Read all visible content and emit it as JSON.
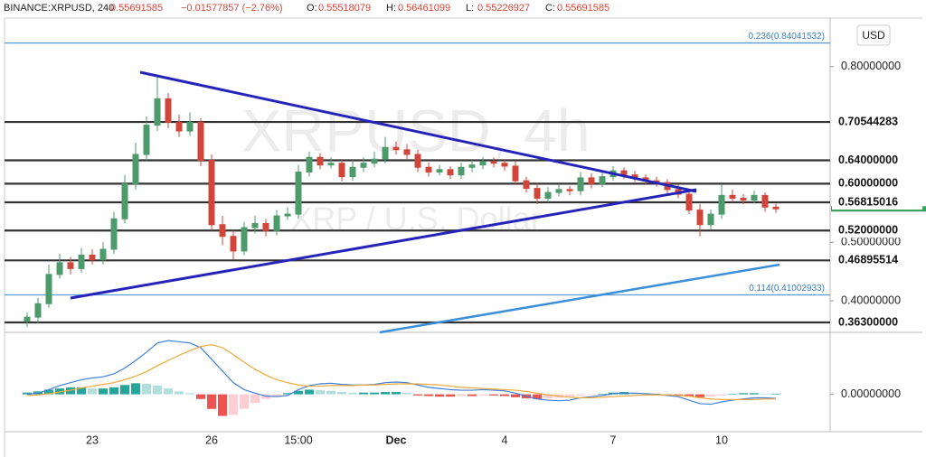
{
  "chart_data": {
    "type": "candlestick",
    "title": "BINANCE:XRPUSD, 240",
    "last": "0.55691585",
    "change": "−0.01577857 (−2.76%)",
    "ohlc_legend": [
      {
        "key": "O:",
        "value": "0.55518079"
      },
      {
        "key": "H:",
        "value": "0.56461099"
      },
      {
        "key": "L:",
        "value": "0.55226927"
      },
      {
        "key": "C:",
        "value": "0.55691585"
      }
    ],
    "watermark": "XRPUSD, 4h",
    "watermark_subtitle": "XRP / U.S. Dollar",
    "currency": "USD",
    "up_color": "#4d9a6b",
    "down_color": "#d0463a",
    "categories": [
      null,
      null,
      null,
      null,
      null,
      null,
      "23",
      null,
      null,
      null,
      null,
      null,
      null,
      null,
      null,
      null,
      null,
      "26",
      null,
      null,
      null,
      null,
      null,
      null,
      null,
      "15:00",
      null,
      null,
      null,
      null,
      null,
      null,
      null,
      null,
      "Dec",
      null,
      null,
      null,
      null,
      null,
      null,
      null,
      null,
      null,
      "4",
      null,
      null,
      null,
      null,
      null,
      null,
      null,
      null,
      null,
      "7",
      null,
      null,
      null,
      null,
      null,
      null,
      null,
      null,
      null,
      "10",
      null,
      null,
      null,
      null,
      null
    ],
    "open": [
      0.365,
      0.372,
      0.395,
      0.445,
      0.465,
      0.455,
      0.478,
      0.47,
      0.488,
      0.54,
      0.6,
      0.65,
      0.7,
      0.745,
      0.705,
      0.69,
      0.705,
      0.64,
      0.53,
      0.51,
      0.485,
      0.525,
      0.532,
      0.52,
      0.545,
      0.548,
      0.62,
      0.645,
      0.632,
      0.635,
      0.612,
      0.628,
      0.635,
      0.642,
      0.662,
      0.658,
      0.65,
      0.628,
      0.62,
      0.624,
      0.615,
      0.628,
      0.632,
      0.638,
      0.635,
      0.63,
      0.605,
      0.592,
      0.575,
      0.585,
      0.59,
      0.588,
      0.61,
      0.6,
      0.612,
      0.622,
      0.615,
      0.61,
      0.605,
      0.602,
      0.59,
      0.582,
      0.555,
      0.53,
      0.548,
      0.58,
      0.575,
      0.572,
      0.58,
      0.56
    ],
    "high": [
      0.38,
      0.405,
      0.462,
      0.48,
      0.475,
      0.49,
      0.488,
      0.5,
      0.552,
      0.615,
      0.67,
      0.715,
      0.785,
      0.755,
      0.718,
      0.722,
      0.712,
      0.65,
      0.545,
      0.52,
      0.535,
      0.545,
      0.54,
      0.555,
      0.56,
      0.632,
      0.655,
      0.652,
      0.645,
      0.642,
      0.64,
      0.645,
      0.655,
      0.68,
      0.672,
      0.668,
      0.658,
      0.636,
      0.632,
      0.63,
      0.636,
      0.64,
      0.646,
      0.645,
      0.642,
      0.638,
      0.612,
      0.6,
      0.594,
      0.598,
      0.596,
      0.62,
      0.618,
      0.622,
      0.63,
      0.628,
      0.622,
      0.616,
      0.612,
      0.608,
      0.598,
      0.588,
      0.565,
      0.556,
      0.598,
      0.59,
      0.582,
      0.588,
      0.585,
      0.566
    ],
    "low": [
      0.355,
      0.362,
      0.388,
      0.438,
      0.445,
      0.448,
      0.462,
      0.462,
      0.48,
      0.532,
      0.59,
      0.64,
      0.69,
      0.695,
      0.68,
      0.682,
      0.63,
      0.52,
      0.495,
      0.47,
      0.478,
      0.515,
      0.51,
      0.512,
      0.538,
      0.54,
      0.612,
      0.625,
      0.626,
      0.604,
      0.605,
      0.62,
      0.628,
      0.635,
      0.65,
      0.642,
      0.62,
      0.612,
      0.614,
      0.608,
      0.608,
      0.62,
      0.625,
      0.628,
      0.622,
      0.598,
      0.585,
      0.565,
      0.568,
      0.578,
      0.58,
      0.58,
      0.592,
      0.594,
      0.605,
      0.608,
      0.603,
      0.598,
      0.595,
      0.583,
      0.575,
      0.548,
      0.51,
      0.522,
      0.54,
      0.568,
      0.565,
      0.566,
      0.552,
      0.55
    ],
    "close": [
      0.372,
      0.395,
      0.445,
      0.465,
      0.455,
      0.478,
      0.47,
      0.488,
      0.54,
      0.6,
      0.65,
      0.7,
      0.745,
      0.705,
      0.69,
      0.705,
      0.64,
      0.53,
      0.51,
      0.485,
      0.525,
      0.532,
      0.52,
      0.545,
      0.548,
      0.62,
      0.645,
      0.632,
      0.635,
      0.612,
      0.628,
      0.635,
      0.642,
      0.662,
      0.658,
      0.65,
      0.628,
      0.62,
      0.624,
      0.615,
      0.628,
      0.632,
      0.638,
      0.635,
      0.63,
      0.605,
      0.592,
      0.575,
      0.585,
      0.59,
      0.588,
      0.61,
      0.6,
      0.612,
      0.622,
      0.615,
      0.61,
      0.605,
      0.602,
      0.59,
      0.582,
      0.555,
      0.53,
      0.548,
      0.58,
      0.575,
      0.572,
      0.58,
      0.56,
      0.557
    ],
    "ylim": [
      0.346,
      0.883
    ],
    "yticks": [
      {
        "value": 0.8,
        "label": "0.80000000"
      },
      {
        "value": 0.5,
        "label": "0.50000000"
      },
      {
        "value": 0.4,
        "label": "0.40000000"
      }
    ],
    "levels": [
      0.70544283,
      {
        "value": 0.64,
        "label": "0.64000000"
      },
      {
        "value": 0.6,
        "label": "0.60000000"
      },
      0.56815016,
      {
        "value": 0.52,
        "label": "0.52000000"
      },
      0.46895514,
      {
        "value": 0.363,
        "label": "0.36300000"
      }
    ],
    "fib_levels": [
      {
        "value": 0.84041532,
        "label": "0.236(0.84041532)"
      },
      {
        "value": 0.41002933,
        "label": "0.114(0.41002933)"
      }
    ],
    "macd": {
      "ylim": [
        -0.061,
        0.1
      ],
      "yticks": [
        {
          "value": 0,
          "label": "0.00000000"
        }
      ],
      "line": {
        "color": "#3f7fd8",
        "values": [
          0.0,
          0.002,
          0.008,
          0.015,
          0.02,
          0.025,
          0.028,
          0.03,
          0.035,
          0.045,
          0.058,
          0.072,
          0.088,
          0.092,
          0.09,
          0.088,
          0.08,
          0.06,
          0.04,
          0.02,
          0.008,
          0.002,
          -0.003,
          -0.004,
          -0.002,
          0.008,
          0.015,
          0.018,
          0.019,
          0.017,
          0.016,
          0.016,
          0.017,
          0.02,
          0.021,
          0.02,
          0.016,
          0.012,
          0.01,
          0.008,
          0.007,
          0.007,
          0.008,
          0.007,
          0.006,
          0.002,
          -0.003,
          -0.008,
          -0.01,
          -0.011,
          -0.01,
          -0.006,
          -0.004,
          -0.002,
          0.001,
          0.002,
          0.002,
          0.001,
          0.0,
          -0.002,
          -0.004,
          -0.01,
          -0.016,
          -0.017,
          -0.013,
          -0.01,
          -0.008,
          -0.006,
          -0.006,
          -0.007
        ]
      },
      "signal": {
        "color": "#f0a93b",
        "values": [
          -0.002,
          -0.001,
          0.001,
          0.004,
          0.007,
          0.011,
          0.014,
          0.017,
          0.02,
          0.025,
          0.031,
          0.039,
          0.049,
          0.058,
          0.067,
          0.075,
          0.082,
          0.085,
          0.08,
          0.068,
          0.055,
          0.043,
          0.033,
          0.025,
          0.02,
          0.016,
          0.014,
          0.014,
          0.015,
          0.015,
          0.015,
          0.016,
          0.016,
          0.017,
          0.018,
          0.018,
          0.018,
          0.017,
          0.016,
          0.014,
          0.012,
          0.011,
          0.01,
          0.009,
          0.008,
          0.007,
          0.005,
          0.002,
          -0.001,
          -0.003,
          -0.005,
          -0.006,
          -0.006,
          -0.005,
          -0.004,
          -0.003,
          -0.002,
          -0.001,
          -0.001,
          -0.001,
          -0.002,
          -0.003,
          -0.006,
          -0.008,
          -0.009,
          -0.009,
          -0.009,
          -0.009,
          -0.008,
          -0.008
        ]
      },
      "histogram": {
        "up_color": "#26a69a",
        "up_fading_color": "#b2dfdb",
        "down_color": "#ef5350",
        "down_fading_color": "#ffcdd2",
        "values": [
          0.003,
          0.005,
          0.008,
          0.01,
          0.012,
          0.012,
          0.01,
          0.01,
          0.012,
          0.016,
          0.019,
          0.018,
          0.015,
          0.01,
          0.005,
          0.002,
          -0.008,
          -0.025,
          -0.037,
          -0.035,
          -0.025,
          -0.015,
          -0.008,
          -0.004,
          0.002,
          0.006,
          0.008,
          0.007,
          0.006,
          0.004,
          0.003,
          0.003,
          0.003,
          0.004,
          0.004,
          0.003,
          -0.002,
          -0.003,
          -0.004,
          -0.004,
          -0.003,
          -0.003,
          -0.002,
          -0.002,
          -0.003,
          -0.005,
          -0.007,
          -0.008,
          -0.007,
          -0.006,
          -0.004,
          -0.002,
          -0.001,
          0.001,
          0.003,
          0.004,
          0.003,
          0.002,
          0.001,
          -0.001,
          -0.002,
          -0.004,
          -0.005,
          -0.004,
          -0.002,
          0.001,
          0.002,
          0.002,
          0.001,
          0.001
        ]
      }
    }
  }
}
